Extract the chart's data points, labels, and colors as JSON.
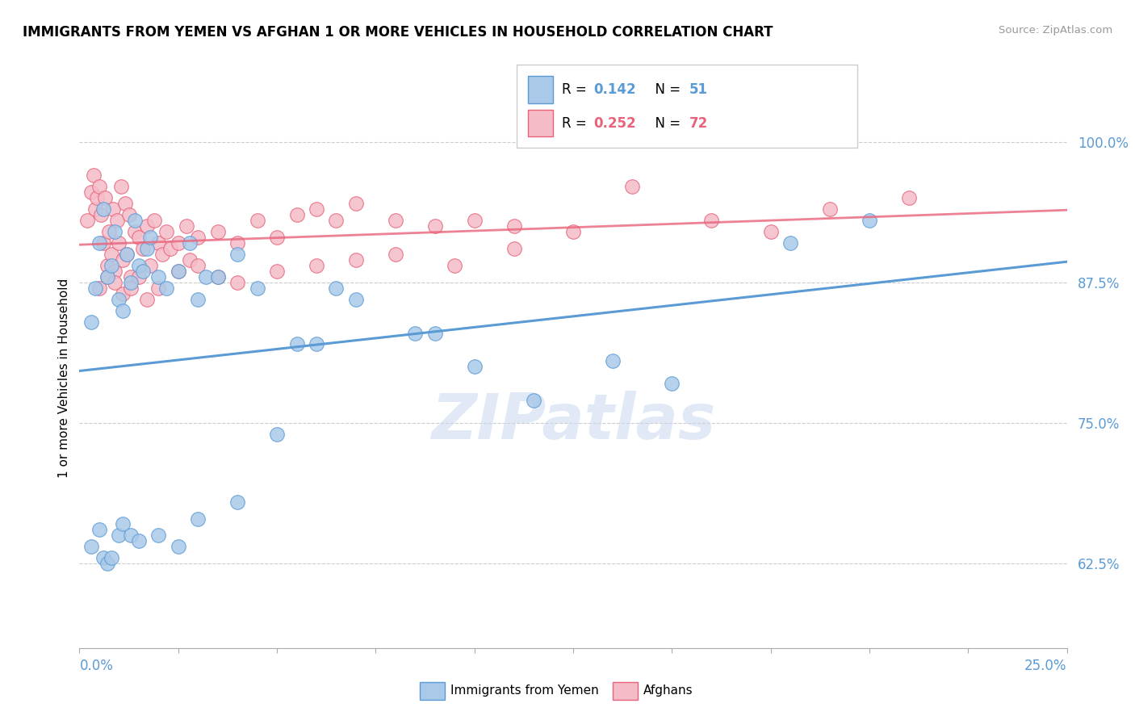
{
  "title": "IMMIGRANTS FROM YEMEN VS AFGHAN 1 OR MORE VEHICLES IN HOUSEHOLD CORRELATION CHART",
  "source": "Source: ZipAtlas.com",
  "ylabel": "1 or more Vehicles in Household",
  "yticks": [
    62.5,
    75.0,
    87.5,
    100.0
  ],
  "ytick_labels": [
    "62.5%",
    "75.0%",
    "87.5%",
    "100.0%"
  ],
  "xmin": 0.0,
  "xmax": 25.0,
  "ymin": 55.0,
  "ymax": 103.0,
  "series1_name": "Immigrants from Yemen",
  "series1_color": "#aac9e8",
  "series1_edge_color": "#5b9bd5",
  "series1_R": 0.142,
  "series1_N": 51,
  "series2_name": "Afghans",
  "series2_color": "#f5bcc8",
  "series2_edge_color": "#e8637a",
  "series2_R": 0.252,
  "series2_N": 72,
  "scatter1_x": [
    0.3,
    0.4,
    0.5,
    0.6,
    0.7,
    0.8,
    0.9,
    1.0,
    1.1,
    1.2,
    1.3,
    1.4,
    1.5,
    1.6,
    1.7,
    1.8,
    2.0,
    2.2,
    2.5,
    2.8,
    3.0,
    3.2,
    3.5,
    4.0,
    4.5,
    5.5,
    6.0,
    7.0,
    8.5,
    10.0,
    11.5,
    13.5,
    15.0,
    18.0,
    20.0,
    0.3,
    0.5,
    0.6,
    0.7,
    0.8,
    1.0,
    1.1,
    1.3,
    1.5,
    2.0,
    2.5,
    3.0,
    4.0,
    5.0,
    6.5,
    9.0
  ],
  "scatter1_y": [
    84.0,
    87.0,
    91.0,
    94.0,
    88.0,
    89.0,
    92.0,
    86.0,
    85.0,
    90.0,
    87.5,
    93.0,
    89.0,
    88.5,
    90.5,
    91.5,
    88.0,
    87.0,
    88.5,
    91.0,
    86.0,
    88.0,
    88.0,
    90.0,
    87.0,
    82.0,
    82.0,
    86.0,
    83.0,
    80.0,
    77.0,
    80.5,
    78.5,
    91.0,
    93.0,
    64.0,
    65.5,
    63.0,
    62.5,
    63.0,
    65.0,
    66.0,
    65.0,
    64.5,
    65.0,
    64.0,
    66.5,
    68.0,
    74.0,
    87.0,
    83.0
  ],
  "scatter2_x": [
    0.2,
    0.3,
    0.35,
    0.4,
    0.45,
    0.5,
    0.55,
    0.6,
    0.65,
    0.7,
    0.75,
    0.8,
    0.85,
    0.9,
    0.95,
    1.0,
    1.05,
    1.1,
    1.15,
    1.2,
    1.25,
    1.3,
    1.4,
    1.5,
    1.6,
    1.7,
    1.8,
    1.9,
    2.0,
    2.1,
    2.2,
    2.3,
    2.5,
    2.7,
    2.8,
    3.0,
    3.5,
    4.0,
    4.5,
    5.0,
    5.5,
    6.0,
    6.5,
    7.0,
    8.0,
    9.0,
    10.0,
    11.0,
    0.5,
    0.7,
    0.9,
    1.1,
    1.3,
    1.5,
    1.7,
    2.0,
    2.5,
    3.0,
    3.5,
    4.0,
    5.0,
    6.0,
    7.0,
    8.0,
    9.5,
    11.0,
    12.5,
    14.0,
    16.0,
    17.5,
    19.0,
    21.0
  ],
  "scatter2_y": [
    93.0,
    95.5,
    97.0,
    94.0,
    95.0,
    96.0,
    93.5,
    91.0,
    95.0,
    89.0,
    92.0,
    90.0,
    94.0,
    88.5,
    93.0,
    91.0,
    96.0,
    89.5,
    94.5,
    90.0,
    93.5,
    88.0,
    92.0,
    91.5,
    90.5,
    92.5,
    89.0,
    93.0,
    91.0,
    90.0,
    92.0,
    90.5,
    91.0,
    92.5,
    89.5,
    91.5,
    92.0,
    91.0,
    93.0,
    91.5,
    93.5,
    94.0,
    93.0,
    94.5,
    93.0,
    92.5,
    93.0,
    92.5,
    87.0,
    88.0,
    87.5,
    86.5,
    87.0,
    88.0,
    86.0,
    87.0,
    88.5,
    89.0,
    88.0,
    87.5,
    88.5,
    89.0,
    89.5,
    90.0,
    89.0,
    90.5,
    92.0,
    96.0,
    93.0,
    92.0,
    94.0,
    95.0
  ]
}
